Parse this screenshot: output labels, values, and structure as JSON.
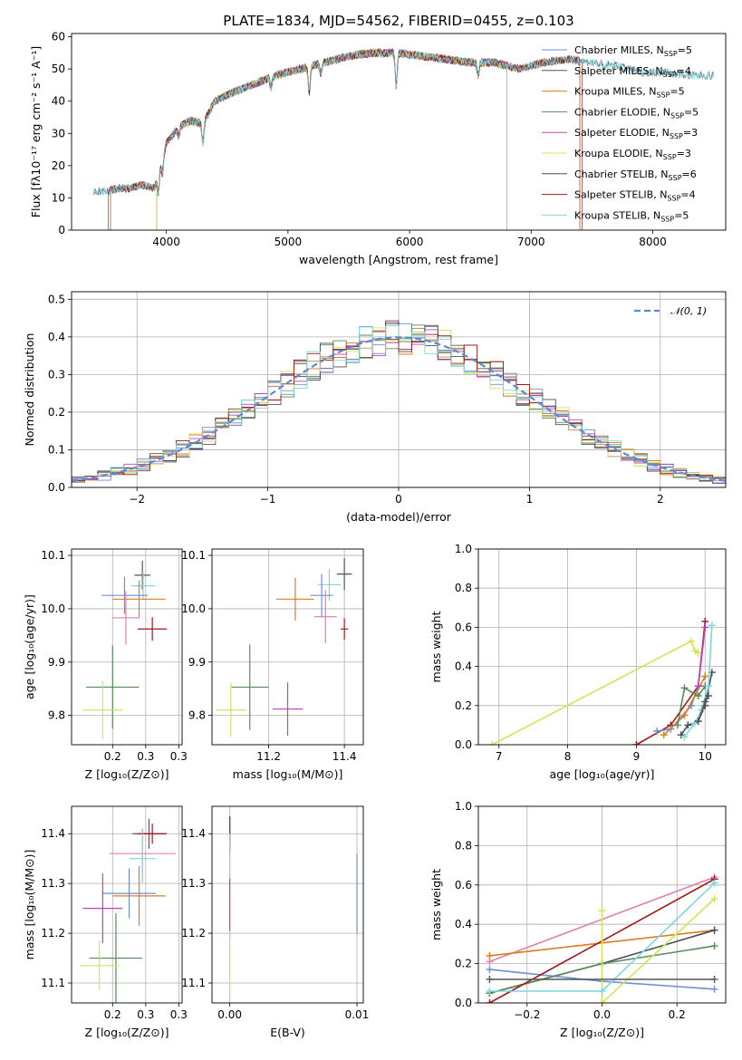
{
  "page_title": "PLATE=1834, MJD=54562, FIBERID=0455, z=0.103",
  "colors": {
    "Chabrier MILES": "#6a8fd6",
    "Salpeter MILES": "#555555",
    "Kroupa MILES": "#e07b20",
    "Chabrier ELODIE": "#5a8a5a",
    "Salpeter ELODIE": "#c040c0",
    "Kroupa ELODIE": "#d6e35a",
    "Chabrier STELIB": "#4d4d4d",
    "Salpeter STELIB": "#a01818",
    "Kroupa STELIB": "#7fd6e0",
    "Pink": "#e080b0",
    "grid": "#b0b0b0",
    "normal_curve": "#5a8ad6"
  },
  "chart_data": [
    {
      "id": "spectrum",
      "type": "line",
      "title": "PLATE=1834, MJD=54562, FIBERID=0455, z=0.103",
      "xlabel": "wavelength [Angstrom, rest frame]",
      "ylabel": "Flux [fλ10⁻¹⁷ erg cm⁻² s⁻¹ A⁻¹]",
      "xlim": [
        3220,
        8600
      ],
      "ylim": [
        0,
        61
      ],
      "xticks": [
        4000,
        5000,
        6000,
        7000,
        8000
      ],
      "yticks": [
        0,
        10,
        20,
        30,
        40,
        50,
        60
      ],
      "grid": false,
      "legend_position": "top-right",
      "legend": [
        "Chabrier MILES, N_SSP=5",
        "Salpeter MILES, N_SSP=4",
        "Kroupa MILES, N_SSP=5",
        "Chabrier ELODIE, N_SSP=5",
        "Salpeter ELODIE, N_SSP=3",
        "Kroupa ELODIE, N_SSP=3",
        "Chabrier STELIB, N_SSP=6",
        "Salpeter STELIB, N_SSP=4",
        "Kroupa STELIB, N_SSP=5"
      ],
      "legend_colors": [
        "#6a8fd6",
        "#555555",
        "#e07b20",
        "#5a8a5a",
        "#c040c0",
        "#d6e35a",
        "#4d4d4d",
        "#a01818",
        "#7fd6e0"
      ],
      "continuum": {
        "x": [
          3400,
          3500,
          3600,
          3700,
          3800,
          3900,
          4000,
          4100,
          4200,
          4300,
          4400,
          4500,
          4700,
          4900,
          5100,
          5300,
          5500,
          5700,
          5900,
          6100,
          6300,
          6500,
          6700,
          6900,
          7100,
          7300,
          7500,
          7700,
          7900,
          8100,
          8300,
          8500
        ],
        "y": [
          12,
          12,
          13,
          13,
          14,
          13,
          27,
          32,
          34,
          33,
          40,
          42,
          45,
          48,
          50,
          52,
          54,
          55,
          55,
          54,
          53,
          52,
          52,
          50,
          52,
          53,
          52,
          51,
          49,
          49,
          48,
          48
        ]
      },
      "model_ranges": [
        {
          "name": "Chabrier MILES",
          "x": [
            3540,
            7400
          ]
        },
        {
          "name": "Salpeter MILES",
          "x": [
            3540,
            7400
          ]
        },
        {
          "name": "Kroupa MILES",
          "x": [
            3540,
            7400
          ]
        },
        {
          "name": "Chabrier ELODIE",
          "x": [
            3920,
            6800
          ]
        },
        {
          "name": "Salpeter ELODIE",
          "x": [
            3920,
            6800
          ]
        },
        {
          "name": "Kroupa ELODIE",
          "x": [
            3920,
            6800
          ]
        },
        {
          "name": "Chabrier STELIB",
          "x": [
            3400,
            8500
          ]
        },
        {
          "name": "Salpeter STELIB",
          "x": [
            3520,
            7420
          ]
        },
        {
          "name": "Kroupa STELIB",
          "x": [
            3400,
            8500
          ]
        }
      ]
    },
    {
      "id": "residuals",
      "type": "histogram",
      "xlabel": "(data-model)/error",
      "ylabel": "Normed distribution",
      "xlim": [
        -2.5,
        2.5
      ],
      "ylim": [
        0,
        0.52
      ],
      "xticks": [
        -2,
        -1,
        0,
        1,
        2
      ],
      "yticks": [
        0.0,
        0.1,
        0.2,
        0.3,
        0.4,
        0.5
      ],
      "grid": true,
      "legend_position": "top-right",
      "legend": [
        "𝒩(0, 1)"
      ],
      "bin_width": 0.1
    },
    {
      "id": "Z_vs_age",
      "type": "scatter",
      "xlabel": "Z [log₁₀(Z/Z⊙)]",
      "ylabel": "age  [log₁₀(age/yr)]",
      "xlim": [
        0.138,
        0.305
      ],
      "ylim": [
        9.745,
        10.112
      ],
      "xticks": [
        0.2,
        0.25,
        0.3
      ],
      "yticks": [
        9.8,
        9.9,
        10.0,
        10.1
      ],
      "grid": true,
      "points": [
        {
          "name": "Salpeter MILES",
          "x": 0.245,
          "y": 10.063,
          "xerr": 0.012,
          "yerr": 0.027
        },
        {
          "name": "Kroupa STELIB",
          "x": 0.246,
          "y": 10.043,
          "xerr": 0.018,
          "yerr": 0.027
        },
        {
          "name": "Chabrier MILES",
          "x": 0.218,
          "y": 10.025,
          "xerr": 0.035,
          "yerr": 0.035
        },
        {
          "name": "Kroupa MILES",
          "x": 0.24,
          "y": 10.018,
          "xerr": 0.04,
          "yerr": 0.035
        },
        {
          "name": "Pink",
          "x": 0.22,
          "y": 9.983,
          "xerr": 0.02,
          "yerr": 0.05
        },
        {
          "name": "Salpeter STELIB",
          "x": 0.26,
          "y": 9.962,
          "xerr": 0.022,
          "yerr": 0.022
        },
        {
          "name": "Chabrier ELODIE",
          "x": 0.2,
          "y": 9.853,
          "xerr": 0.04,
          "yerr": 0.078
        },
        {
          "name": "Kroupa ELODIE",
          "x": 0.185,
          "y": 9.81,
          "xerr": 0.03,
          "yerr": 0.055
        }
      ]
    },
    {
      "id": "mass_vs_age",
      "type": "scatter",
      "xlabel": "mass [log₁₀(M/M⊙)]",
      "ylabel": "",
      "xlim": [
        11.05,
        11.45
      ],
      "ylim": [
        9.745,
        10.112
      ],
      "xticks": [
        11.2,
        11.4
      ],
      "yticks": [
        9.8,
        9.9,
        10.0,
        10.1
      ],
      "grid": true,
      "points": [
        {
          "name": "Salpeter MILES",
          "x": 11.4,
          "y": 10.065,
          "xerr": 0.02,
          "yerr": 0.03
        },
        {
          "name": "Kroupa STELIB",
          "x": 11.36,
          "y": 10.045,
          "xerr": 0.03,
          "yerr": 0.03
        },
        {
          "name": "Chabrier MILES",
          "x": 11.34,
          "y": 10.025,
          "xerr": 0.03,
          "yerr": 0.04
        },
        {
          "name": "Kroupa MILES",
          "x": 11.27,
          "y": 10.018,
          "xerr": 0.05,
          "yerr": 0.04
        },
        {
          "name": "Pink",
          "x": 11.35,
          "y": 9.985,
          "xerr": 0.03,
          "yerr": 0.05
        },
        {
          "name": "Salpeter STELIB",
          "x": 11.4,
          "y": 9.962,
          "xerr": 0.01,
          "yerr": 0.02
        },
        {
          "name": "Chabrier ELODIE",
          "x": 11.15,
          "y": 9.853,
          "xerr": 0.05,
          "yerr": 0.08
        },
        {
          "name": "Salpeter ELODIE",
          "x": 11.25,
          "y": 9.812,
          "xerr": 0.04,
          "yerr": 0.05
        },
        {
          "name": "Kroupa ELODIE",
          "x": 11.1,
          "y": 9.81,
          "xerr": 0.04,
          "yerr": 0.05
        }
      ]
    },
    {
      "id": "age_vs_weight",
      "type": "line",
      "xlabel": "age  [log₁₀(age/yr)]",
      "ylabel": "mass weight",
      "xlim": [
        6.7,
        10.3
      ],
      "ylim": [
        0,
        1
      ],
      "xticks": [
        7,
        8,
        9,
        10
      ],
      "yticks": [
        0.0,
        0.2,
        0.4,
        0.6,
        0.8,
        1.0
      ],
      "grid": true,
      "series": [
        {
          "name": "Kroupa ELODIE",
          "x": [
            6.9,
            9.8,
            9.85,
            9.9
          ],
          "y": [
            0.0,
            0.53,
            0.48,
            0.47
          ]
        },
        {
          "name": "Salpeter STELIB",
          "x": [
            9.0,
            9.5,
            9.9,
            10.0
          ],
          "y": [
            0.0,
            0.1,
            0.3,
            0.63
          ]
        },
        {
          "name": "Chabrier MILES",
          "x": [
            9.3,
            9.5,
            9.8,
            9.9
          ],
          "y": [
            0.07,
            0.08,
            0.2,
            0.3
          ]
        },
        {
          "name": "Kroupa MILES",
          "x": [
            9.4,
            9.7,
            10.0
          ],
          "y": [
            0.05,
            0.15,
            0.35
          ]
        },
        {
          "name": "Chabrier ELODIE",
          "x": [
            9.6,
            9.7,
            9.9,
            10.0
          ],
          "y": [
            0.1,
            0.29,
            0.25,
            0.3
          ]
        },
        {
          "name": "Salpeter ELODIE",
          "x": [
            9.9,
            10.0
          ],
          "y": [
            0.3,
            0.6
          ]
        },
        {
          "name": "Chabrier STELIB",
          "x": [
            9.65,
            9.75,
            9.9,
            10.0,
            10.1
          ],
          "y": [
            0.05,
            0.1,
            0.12,
            0.2,
            0.37
          ]
        },
        {
          "name": "Kroupa STELIB",
          "x": [
            9.7,
            9.85,
            9.95,
            10.05,
            10.1
          ],
          "y": [
            0.04,
            0.11,
            0.18,
            0.3,
            0.61
          ]
        },
        {
          "name": "Salpeter MILES",
          "x": [
            9.9,
            10.0,
            10.05
          ],
          "y": [
            0.12,
            0.22,
            0.25
          ]
        }
      ]
    },
    {
      "id": "Z_vs_mass",
      "type": "scatter",
      "xlabel": "Z [log₁₀(Z/Z⊙)]",
      "ylabel": "mass [log₁₀(M/M⊙)]",
      "xlim": [
        0.138,
        0.305
      ],
      "ylim": [
        11.06,
        11.455
      ],
      "xticks": [
        0.2,
        0.25,
        0.3
      ],
      "yticks": [
        11.1,
        11.2,
        11.3,
        11.4
      ],
      "grid": true,
      "points": [
        {
          "name": "Salpeter MILES",
          "x": 0.255,
          "y": 11.4,
          "xerr": 0.025,
          "yerr": 0.03
        },
        {
          "name": "Salpeter STELIB",
          "x": 0.26,
          "y": 11.4,
          "xerr": 0.022,
          "yerr": 0.02
        },
        {
          "name": "Pink",
          "x": 0.245,
          "y": 11.36,
          "xerr": 0.05,
          "yerr": 0.05
        },
        {
          "name": "Kroupa STELIB",
          "x": 0.245,
          "y": 11.35,
          "xerr": 0.02,
          "yerr": 0.05
        },
        {
          "name": "Chabrier MILES",
          "x": 0.225,
          "y": 11.28,
          "xerr": 0.04,
          "yerr": 0.05
        },
        {
          "name": "Kroupa MILES",
          "x": 0.24,
          "y": 11.275,
          "xerr": 0.04,
          "yerr": 0.06
        },
        {
          "name": "Salpeter ELODIE",
          "x": 0.185,
          "y": 11.25,
          "xerr": 0.03,
          "yerr": 0.07
        },
        {
          "name": "Chabrier ELODIE",
          "x": 0.205,
          "y": 11.15,
          "xerr": 0.04,
          "yerr": 0.09
        },
        {
          "name": "Kroupa ELODIE",
          "x": 0.18,
          "y": 11.135,
          "xerr": 0.03,
          "yerr": 0.05
        }
      ]
    },
    {
      "id": "ebv_vs_mass",
      "type": "scatter",
      "xlabel": "E(B-V)",
      "ylabel": "",
      "xlim": [
        -0.0014,
        0.0105
      ],
      "ylim": [
        11.06,
        11.455
      ],
      "xticks": [
        0.0,
        0.01
      ],
      "yticks": [
        11.1,
        11.2,
        11.3,
        11.4
      ],
      "grid": true,
      "points": [
        {
          "name": "Salpeter STELIB",
          "x": 0.0,
          "y": 11.4,
          "xerr": 0.0,
          "yerr": 0.035
        },
        {
          "name": "Salpeter MILES",
          "x": 0.0,
          "y": 11.4,
          "xerr": 0.0,
          "yerr": 0.03
        },
        {
          "name": "Kroupa STELIB",
          "x": 0.0,
          "y": 11.35,
          "xerr": 0.0,
          "yerr": 0.05
        },
        {
          "name": "Salpeter ELODIE",
          "x": 0.0,
          "y": 11.25,
          "xerr": 0.0,
          "yerr": 0.06
        },
        {
          "name": "Kroupa ELODIE",
          "x": 0.0,
          "y": 11.135,
          "xerr": 0.0,
          "yerr": 0.07
        },
        {
          "name": "Chabrier MILES",
          "x": 0.01,
          "y": 11.28,
          "xerr": 0.0,
          "yerr": 0.08
        }
      ]
    },
    {
      "id": "Z_vs_weight",
      "type": "line",
      "xlabel": "Z [log₁₀(Z/Z⊙)]",
      "ylabel": "mass weight",
      "xlim": [
        -0.33,
        0.33
      ],
      "ylim": [
        0,
        1
      ],
      "xticks": [
        -0.2,
        0.0,
        0.2
      ],
      "yticks": [
        0.0,
        0.2,
        0.4,
        0.6,
        0.8,
        1.0
      ],
      "grid": true,
      "series": [
        {
          "name": "Pink",
          "x": [
            -0.3,
            0.3
          ],
          "y": [
            0.21,
            0.64
          ]
        },
        {
          "name": "Kroupa MILES",
          "x": [
            -0.3,
            0.3
          ],
          "y": [
            0.24,
            0.37
          ]
        },
        {
          "name": "Chabrier MILES",
          "x": [
            -0.3,
            0.0,
            0.3
          ],
          "y": [
            0.17,
            0.11,
            0.07
          ]
        },
        {
          "name": "Chabrier STELIB",
          "x": [
            -0.3,
            0.0,
            0.3
          ],
          "y": [
            0.05,
            0.2,
            0.37
          ]
        },
        {
          "name": "Chabrier ELODIE",
          "x": [
            -0.3,
            0.0,
            0.3
          ],
          "y": [
            0.05,
            0.2,
            0.29
          ]
        },
        {
          "name": "Salpeter STELIB",
          "x": [
            -0.3,
            0.3
          ],
          "y": [
            0.0,
            0.63
          ]
        },
        {
          "name": "Kroupa ELODIE",
          "x": [
            0.0,
            0.0,
            0.3
          ],
          "y": [
            0.47,
            0.0,
            0.53
          ]
        },
        {
          "name": "Kroupa STELIB",
          "x": [
            -0.3,
            0.0,
            0.3
          ],
          "y": [
            0.06,
            0.06,
            0.61
          ]
        },
        {
          "name": "Salpeter MILES",
          "x": [
            -0.3,
            0.3
          ],
          "y": [
            0.12,
            0.12
          ]
        }
      ]
    }
  ]
}
